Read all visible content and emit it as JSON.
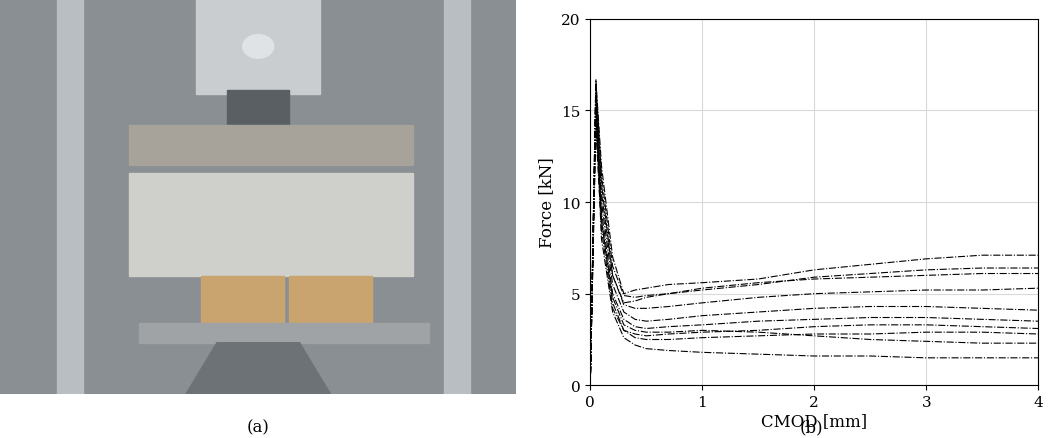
{
  "captions": [
    "(a)",
    "(b)"
  ],
  "chart_data": {
    "type": "line",
    "x_label": "CMOD [mm]",
    "y_label": "Force [kN]",
    "x": [
      0,
      0.05,
      0.1,
      0.2,
      0.3,
      0.4,
      0.5,
      0.7,
      1,
      1.5,
      2,
      2.5,
      3,
      3.5,
      4
    ],
    "series": [
      {
        "color": "#000000",
        "line_style": "dashdot",
        "values": [
          0,
          16.7,
          12,
          7,
          5,
          5.2,
          5.3,
          5.5,
          5.6,
          5.8,
          6.3,
          6.6,
          6.9,
          7.1,
          7.1
        ]
      },
      {
        "color": "#000000",
        "line_style": "dashdot",
        "values": [
          0,
          15.5,
          10,
          5.5,
          4,
          3.6,
          3.5,
          3.6,
          3.8,
          4.0,
          4.2,
          4.3,
          4.3,
          4.2,
          4.1
        ]
      },
      {
        "color": "#000000",
        "line_style": "dashdot",
        "values": [
          0,
          16,
          9,
          4.5,
          3,
          2.6,
          2.5,
          2.5,
          2.6,
          2.7,
          2.8,
          2.8,
          2.9,
          2.9,
          2.8
        ]
      },
      {
        "color": "#000000",
        "line_style": "dashdot",
        "values": [
          0,
          15,
          8,
          4,
          2.6,
          2.2,
          2.0,
          1.9,
          1.8,
          1.7,
          1.6,
          1.6,
          1.5,
          1.5,
          1.5
        ]
      },
      {
        "color": "#000000",
        "line_style": "dashdot",
        "values": [
          0,
          16.3,
          11,
          6,
          4.5,
          4.6,
          4.8,
          5.0,
          5.2,
          5.5,
          5.9,
          6.1,
          6.3,
          6.4,
          6.4
        ]
      },
      {
        "color": "#000000",
        "line_style": "dashdot",
        "values": [
          0,
          14.5,
          9.5,
          5,
          3.6,
          3.2,
          3.1,
          3.2,
          3.3,
          3.5,
          3.6,
          3.7,
          3.7,
          3.6,
          3.5
        ]
      },
      {
        "color": "#000000",
        "line_style": "dashdot",
        "values": [
          0,
          15.8,
          10.5,
          6,
          4.4,
          4.2,
          4.2,
          4.3,
          4.5,
          4.8,
          5.0,
          5.1,
          5.2,
          5.2,
          5.3
        ]
      },
      {
        "color": "#000000",
        "line_style": "dashdot",
        "values": [
          0,
          14,
          8.5,
          4.2,
          3.0,
          2.8,
          2.7,
          2.8,
          2.9,
          3.0,
          3.2,
          3.3,
          3.3,
          3.2,
          3.1
        ]
      },
      {
        "color": "#000000",
        "line_style": "dashdot",
        "values": [
          0,
          15.2,
          9,
          4.8,
          3.3,
          3.0,
          2.9,
          2.9,
          3.0,
          2.9,
          2.7,
          2.5,
          2.4,
          2.3,
          2.3
        ]
      },
      {
        "color": "#000000",
        "line_style": "dashdot",
        "values": [
          0,
          16.5,
          11.5,
          6.5,
          4.9,
          4.8,
          4.9,
          5.0,
          5.3,
          5.6,
          5.8,
          5.9,
          6.0,
          6.1,
          6.1
        ]
      }
    ],
    "xlim": [
      0,
      4
    ],
    "xticks": [
      0,
      1,
      2,
      3,
      4
    ],
    "ylim": [
      0,
      20
    ],
    "yticks": [
      0,
      5,
      10,
      15,
      20
    ],
    "grid": true
  }
}
